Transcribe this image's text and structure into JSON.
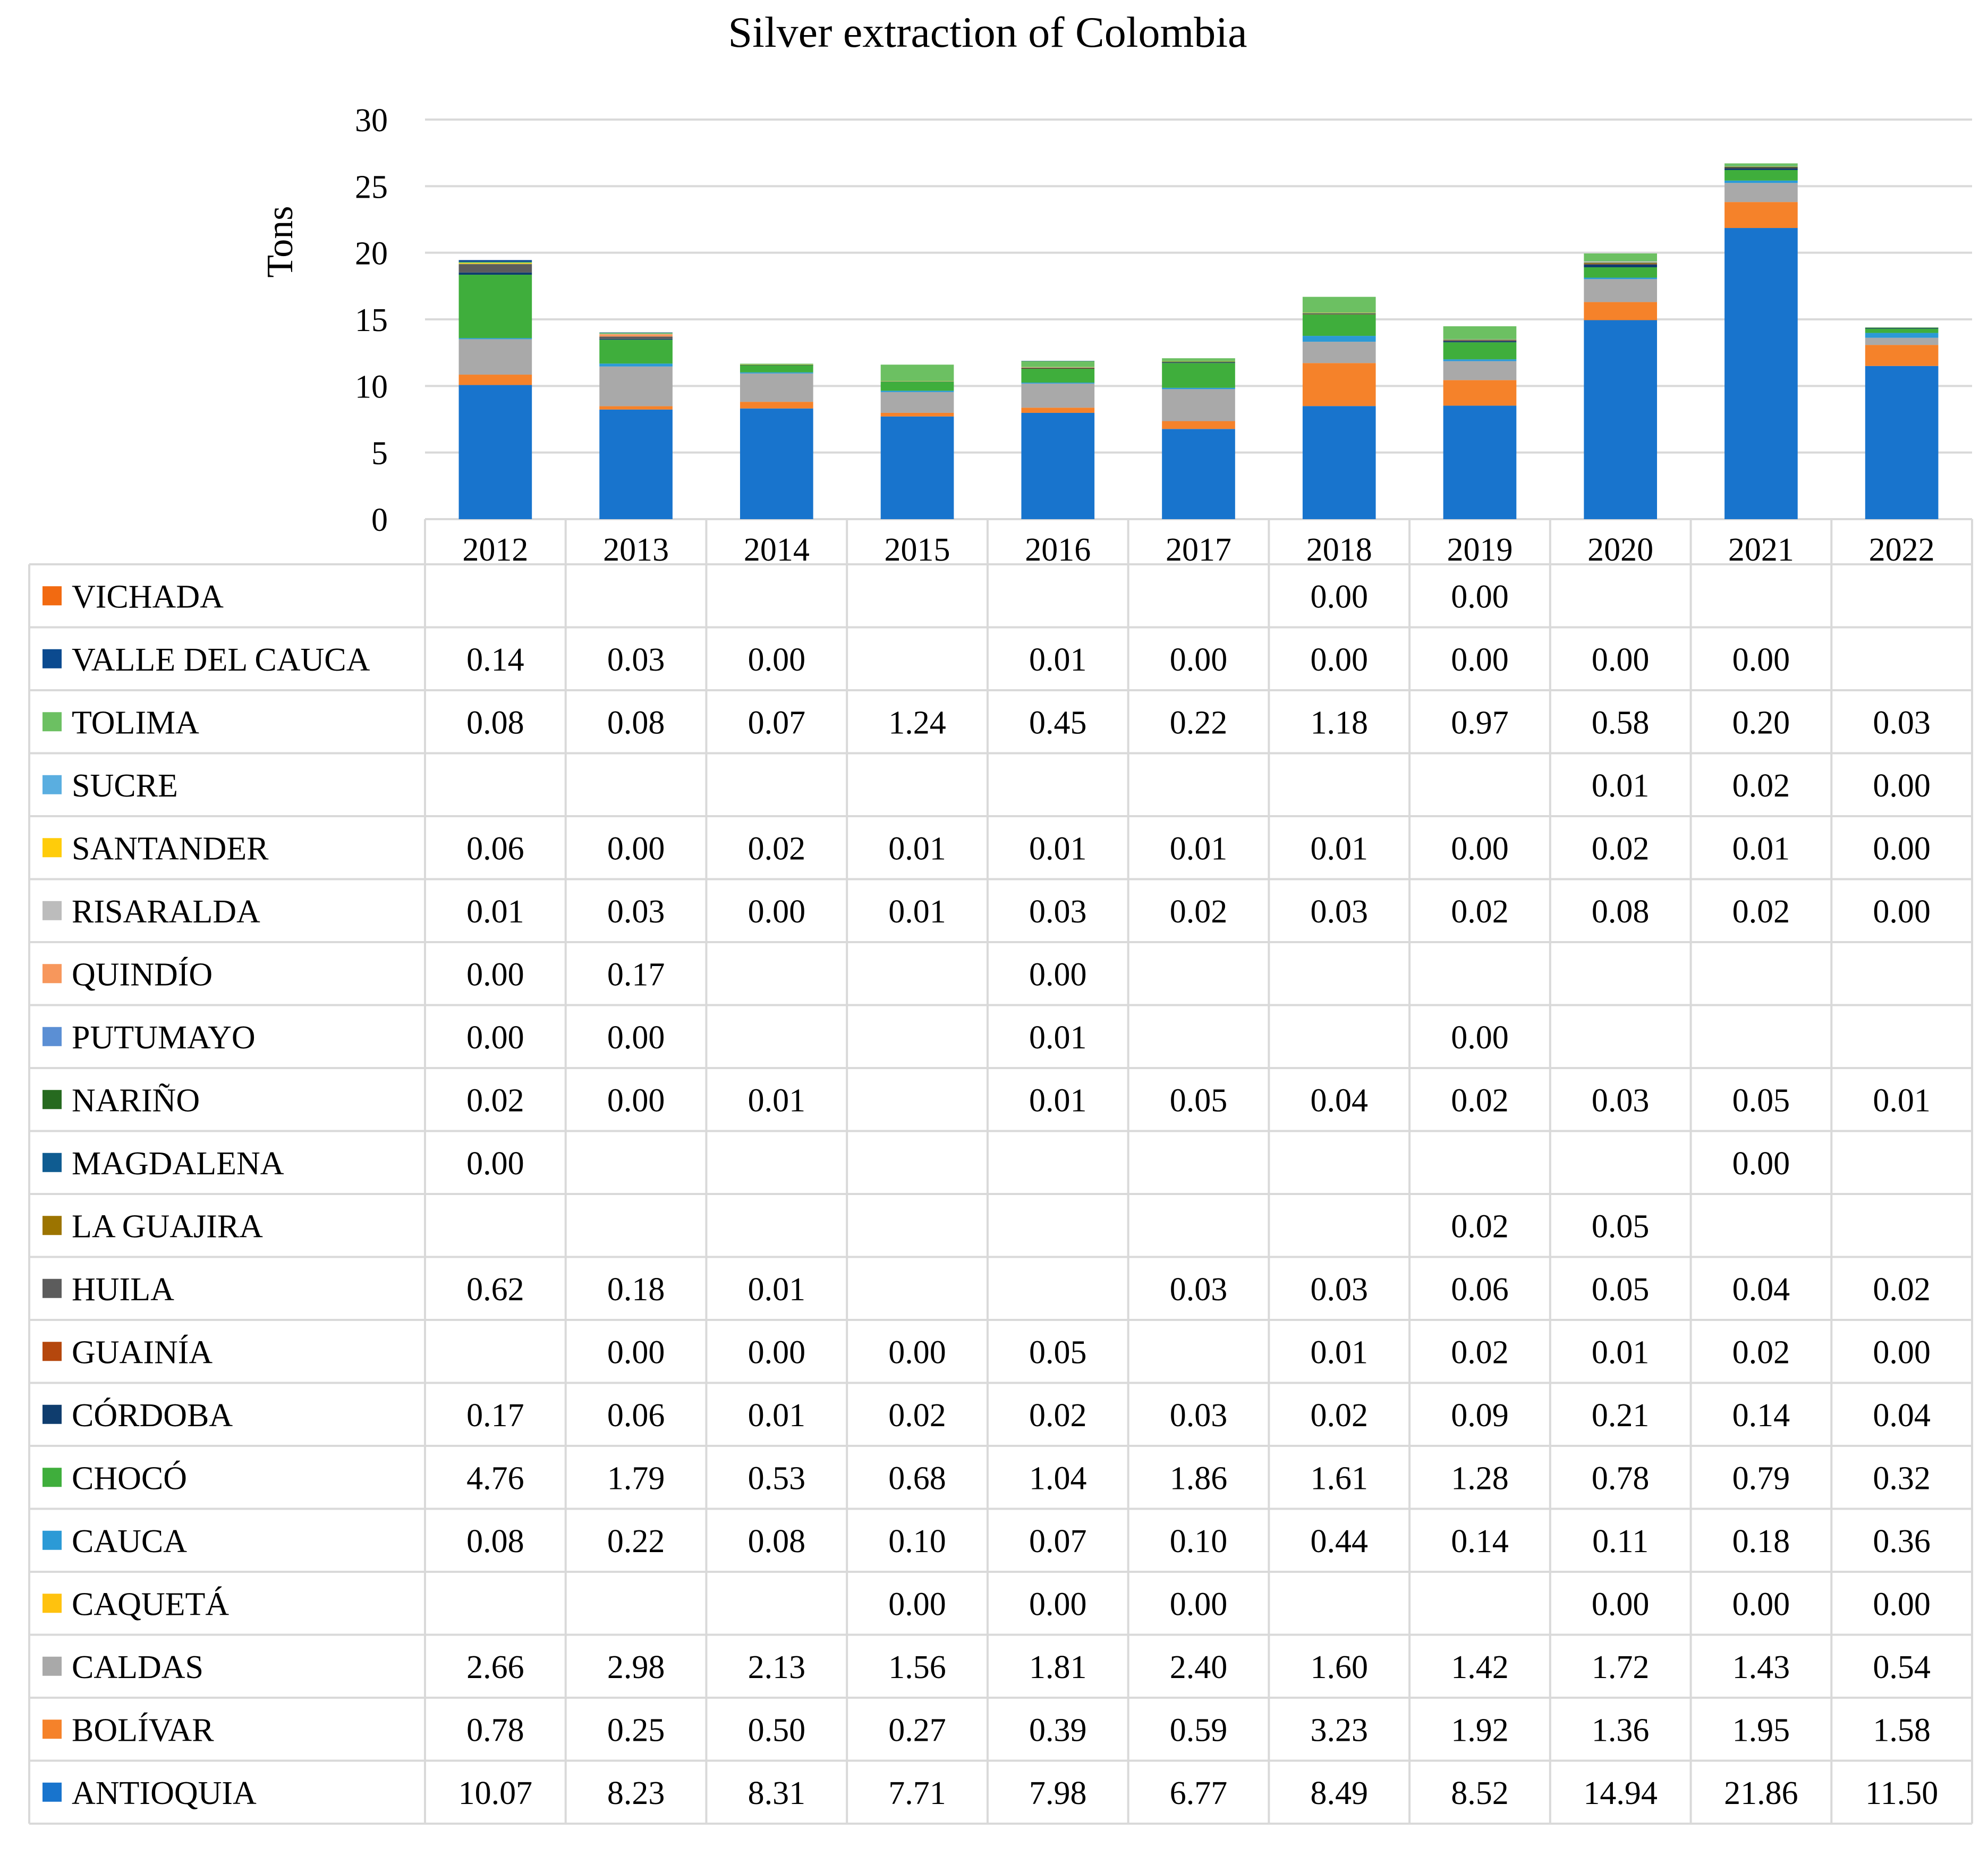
{
  "chart_data": {
    "type": "bar",
    "stacked": true,
    "title": "Silver extraction of Colombia",
    "ylabel": "Tons",
    "xlabel": "",
    "ylim": [
      0,
      30
    ],
    "yticks": [
      0,
      5,
      10,
      15,
      20,
      25,
      30
    ],
    "grid": true,
    "legend": "data-table",
    "categories": [
      "2012",
      "2013",
      "2014",
      "2015",
      "2016",
      "2017",
      "2018",
      "2019",
      "2020",
      "2021",
      "2022"
    ],
    "series": [
      {
        "name": "ANTIOQUIA",
        "color": "#1874cd",
        "values": [
          10.07,
          8.23,
          8.31,
          7.71,
          7.98,
          6.77,
          8.49,
          8.52,
          14.94,
          21.86,
          11.5
        ]
      },
      {
        "name": "BOLÍVAR",
        "color": "#f5822a",
        "values": [
          0.78,
          0.25,
          0.5,
          0.27,
          0.39,
          0.59,
          3.23,
          1.92,
          1.36,
          1.95,
          1.58
        ]
      },
      {
        "name": "CALDAS",
        "color": "#a9a9a9",
        "values": [
          2.66,
          2.98,
          2.13,
          1.56,
          1.81,
          2.4,
          1.6,
          1.42,
          1.72,
          1.43,
          0.54
        ]
      },
      {
        "name": "CAQUETÁ",
        "color": "#ffc20e",
        "values": [
          null,
          null,
          null,
          0.0,
          0.0,
          0.0,
          null,
          null,
          0.0,
          0.0,
          0.0
        ]
      },
      {
        "name": "CAUCA",
        "color": "#2b9ad6",
        "values": [
          0.08,
          0.22,
          0.08,
          0.1,
          0.07,
          0.1,
          0.44,
          0.14,
          0.11,
          0.18,
          0.36
        ]
      },
      {
        "name": "CHOCÓ",
        "color": "#3fae3c",
        "values": [
          4.76,
          1.79,
          0.53,
          0.68,
          1.04,
          1.86,
          1.61,
          1.28,
          0.78,
          0.79,
          0.32
        ]
      },
      {
        "name": "CÓRDOBA",
        "color": "#0f3d6e",
        "values": [
          0.17,
          0.06,
          0.01,
          0.02,
          0.02,
          0.03,
          0.02,
          0.09,
          0.21,
          0.14,
          0.04
        ]
      },
      {
        "name": "GUAINÍA",
        "color": "#b5470d",
        "values": [
          null,
          0.0,
          0.0,
          0.0,
          0.05,
          null,
          0.01,
          0.02,
          0.01,
          0.02,
          0.0
        ]
      },
      {
        "name": "HUILA",
        "color": "#5c5c5c",
        "values": [
          0.62,
          0.18,
          0.01,
          null,
          null,
          0.03,
          0.03,
          0.06,
          0.05,
          0.04,
          0.02
        ]
      },
      {
        "name": "LA GUAJIRA",
        "color": "#9c7400",
        "values": [
          null,
          null,
          null,
          null,
          null,
          null,
          null,
          0.02,
          0.05,
          null,
          null
        ]
      },
      {
        "name": "MAGDALENA",
        "color": "#0f5c91",
        "values": [
          0.0,
          null,
          null,
          null,
          null,
          null,
          null,
          null,
          null,
          0.0,
          null
        ]
      },
      {
        "name": "NARIÑO",
        "color": "#266a1f",
        "values": [
          0.02,
          0.0,
          0.01,
          null,
          0.01,
          0.05,
          0.04,
          0.02,
          0.03,
          0.05,
          0.01
        ]
      },
      {
        "name": "PUTUMAYO",
        "color": "#5b8fd4",
        "values": [
          0.0,
          0.0,
          null,
          null,
          0.01,
          null,
          null,
          0.0,
          null,
          null,
          null
        ]
      },
      {
        "name": "QUINDÍO",
        "color": "#f7975c",
        "values": [
          0.0,
          0.17,
          null,
          null,
          0.0,
          null,
          null,
          null,
          null,
          null,
          null
        ]
      },
      {
        "name": "RISARALDA",
        "color": "#bcbcbc",
        "values": [
          0.01,
          0.03,
          0.0,
          0.01,
          0.03,
          0.02,
          0.03,
          0.02,
          0.08,
          0.02,
          0.0
        ]
      },
      {
        "name": "SANTANDER",
        "color": "#ffcc0a",
        "values": [
          0.06,
          0.0,
          0.02,
          0.01,
          0.01,
          0.01,
          0.01,
          0.0,
          0.02,
          0.01,
          0.0
        ]
      },
      {
        "name": "SUCRE",
        "color": "#5aaee0",
        "values": [
          null,
          null,
          null,
          null,
          null,
          null,
          null,
          null,
          0.01,
          0.02,
          0.0
        ]
      },
      {
        "name": "TOLIMA",
        "color": "#6cc062",
        "values": [
          0.08,
          0.08,
          0.07,
          1.24,
          0.45,
          0.22,
          1.18,
          0.97,
          0.58,
          0.2,
          0.03
        ]
      },
      {
        "name": "VALLE DEL CAUCA",
        "color": "#0b4a8f",
        "values": [
          0.14,
          0.03,
          0.0,
          null,
          0.01,
          0.0,
          0.0,
          0.0,
          0.0,
          0.0,
          null
        ]
      },
      {
        "name": "VICHADA",
        "color": "#f26a11",
        "values": [
          null,
          null,
          null,
          null,
          null,
          null,
          0.0,
          0.0,
          null,
          null,
          null
        ]
      }
    ]
  }
}
